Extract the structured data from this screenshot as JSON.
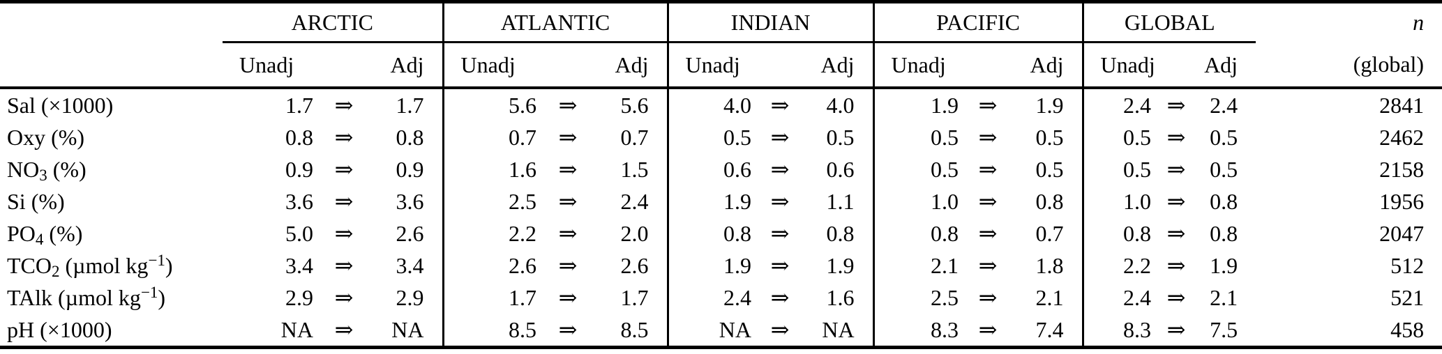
{
  "table": {
    "regions": [
      "ARCTIC",
      "ATLANTIC",
      "INDIAN",
      "PACIFIC",
      "GLOBAL"
    ],
    "col_unadj": "Unadj",
    "col_adj": "Adj",
    "arrow": "⇒",
    "n_header_line1": "n",
    "n_header_line2": "(global)",
    "rows": [
      {
        "label_segments": [
          {
            "t": "Sal (×1000)"
          }
        ],
        "cells": [
          [
            "1.7",
            "1.7"
          ],
          [
            "5.6",
            "5.6"
          ],
          [
            "4.0",
            "4.0"
          ],
          [
            "1.9",
            "1.9"
          ],
          [
            "2.4",
            "2.4"
          ]
        ],
        "n": "2841"
      },
      {
        "label_segments": [
          {
            "t": "Oxy (%)"
          }
        ],
        "cells": [
          [
            "0.8",
            "0.8"
          ],
          [
            "0.7",
            "0.7"
          ],
          [
            "0.5",
            "0.5"
          ],
          [
            "0.5",
            "0.5"
          ],
          [
            "0.5",
            "0.5"
          ]
        ],
        "n": "2462"
      },
      {
        "label_segments": [
          {
            "t": "NO"
          },
          {
            "t": "3",
            "s": "sub"
          },
          {
            "t": " (%)"
          }
        ],
        "cells": [
          [
            "0.9",
            "0.9"
          ],
          [
            "1.6",
            "1.5"
          ],
          [
            "0.6",
            "0.6"
          ],
          [
            "0.5",
            "0.5"
          ],
          [
            "0.5",
            "0.5"
          ]
        ],
        "n": "2158"
      },
      {
        "label_segments": [
          {
            "t": "Si (%)"
          }
        ],
        "cells": [
          [
            "3.6",
            "3.6"
          ],
          [
            "2.5",
            "2.4"
          ],
          [
            "1.9",
            "1.1"
          ],
          [
            "1.0",
            "0.8"
          ],
          [
            "1.0",
            "0.8"
          ]
        ],
        "n": "1956"
      },
      {
        "label_segments": [
          {
            "t": "PO"
          },
          {
            "t": "4",
            "s": "sub"
          },
          {
            "t": " (%)"
          }
        ],
        "cells": [
          [
            "5.0",
            "2.6"
          ],
          [
            "2.2",
            "2.0"
          ],
          [
            "0.8",
            "0.8"
          ],
          [
            "0.8",
            "0.7"
          ],
          [
            "0.8",
            "0.8"
          ]
        ],
        "n": "2047"
      },
      {
        "label_segments": [
          {
            "t": "TCO"
          },
          {
            "t": "2",
            "s": "sub"
          },
          {
            "t": " (µmol kg"
          },
          {
            "t": "−1",
            "s": "sup"
          },
          {
            "t": ")"
          }
        ],
        "cells": [
          [
            "3.4",
            "3.4"
          ],
          [
            "2.6",
            "2.6"
          ],
          [
            "1.9",
            "1.9"
          ],
          [
            "2.1",
            "1.8"
          ],
          [
            "2.2",
            "1.9"
          ]
        ],
        "n": "512"
      },
      {
        "label_segments": [
          {
            "t": "TAlk (µmol kg"
          },
          {
            "t": "−1",
            "s": "sup"
          },
          {
            "t": ")"
          }
        ],
        "cells": [
          [
            "2.9",
            "2.9"
          ],
          [
            "1.7",
            "1.7"
          ],
          [
            "2.4",
            "1.6"
          ],
          [
            "2.5",
            "2.1"
          ],
          [
            "2.4",
            "2.1"
          ]
        ],
        "n": "521"
      },
      {
        "label_segments": [
          {
            "t": "pH (×1000)"
          }
        ],
        "cells": [
          [
            "NA",
            "NA"
          ],
          [
            "8.5",
            "8.5"
          ],
          [
            "NA",
            "NA"
          ],
          [
            "8.3",
            "7.4"
          ],
          [
            "8.3",
            "7.5"
          ]
        ],
        "n": "458"
      }
    ]
  }
}
